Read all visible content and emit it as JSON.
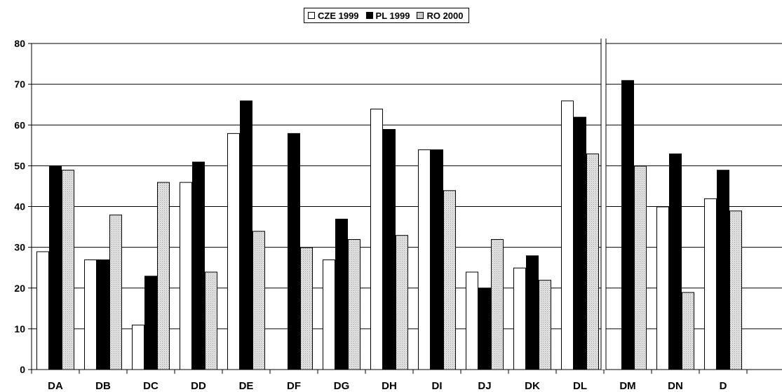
{
  "chart_data": {
    "type": "bar",
    "categories": [
      "DA",
      "DB",
      "DC",
      "DD",
      "DE",
      "DF",
      "DG",
      "DH",
      "DI",
      "DJ",
      "DK",
      "DL",
      "DM",
      "DN",
      "D"
    ],
    "series": [
      {
        "name": "CZE 1999",
        "values": [
          29,
          27,
          11,
          46,
          58,
          null,
          27,
          64,
          54,
          24,
          25,
          66,
          null,
          40,
          42
        ],
        "color": "#ffffff"
      },
      {
        "name": "PL 1999",
        "values": [
          50,
          27,
          23,
          51,
          66,
          58,
          37,
          59,
          54,
          20,
          28,
          62,
          71,
          53,
          49
        ],
        "color": "#000000"
      },
      {
        "name": "RO 2000",
        "values": [
          49,
          38,
          46,
          24,
          34,
          30,
          32,
          33,
          44,
          32,
          22,
          53,
          50,
          19,
          39
        ],
        "color": "#d9d9d9"
      }
    ],
    "ylim": [
      0,
      80
    ],
    "yticks": [
      0,
      10,
      20,
      30,
      40,
      50,
      60,
      70,
      80
    ],
    "grid": true,
    "legend_position": "top-center",
    "separator_between": [
      "DL",
      "DM"
    ]
  }
}
